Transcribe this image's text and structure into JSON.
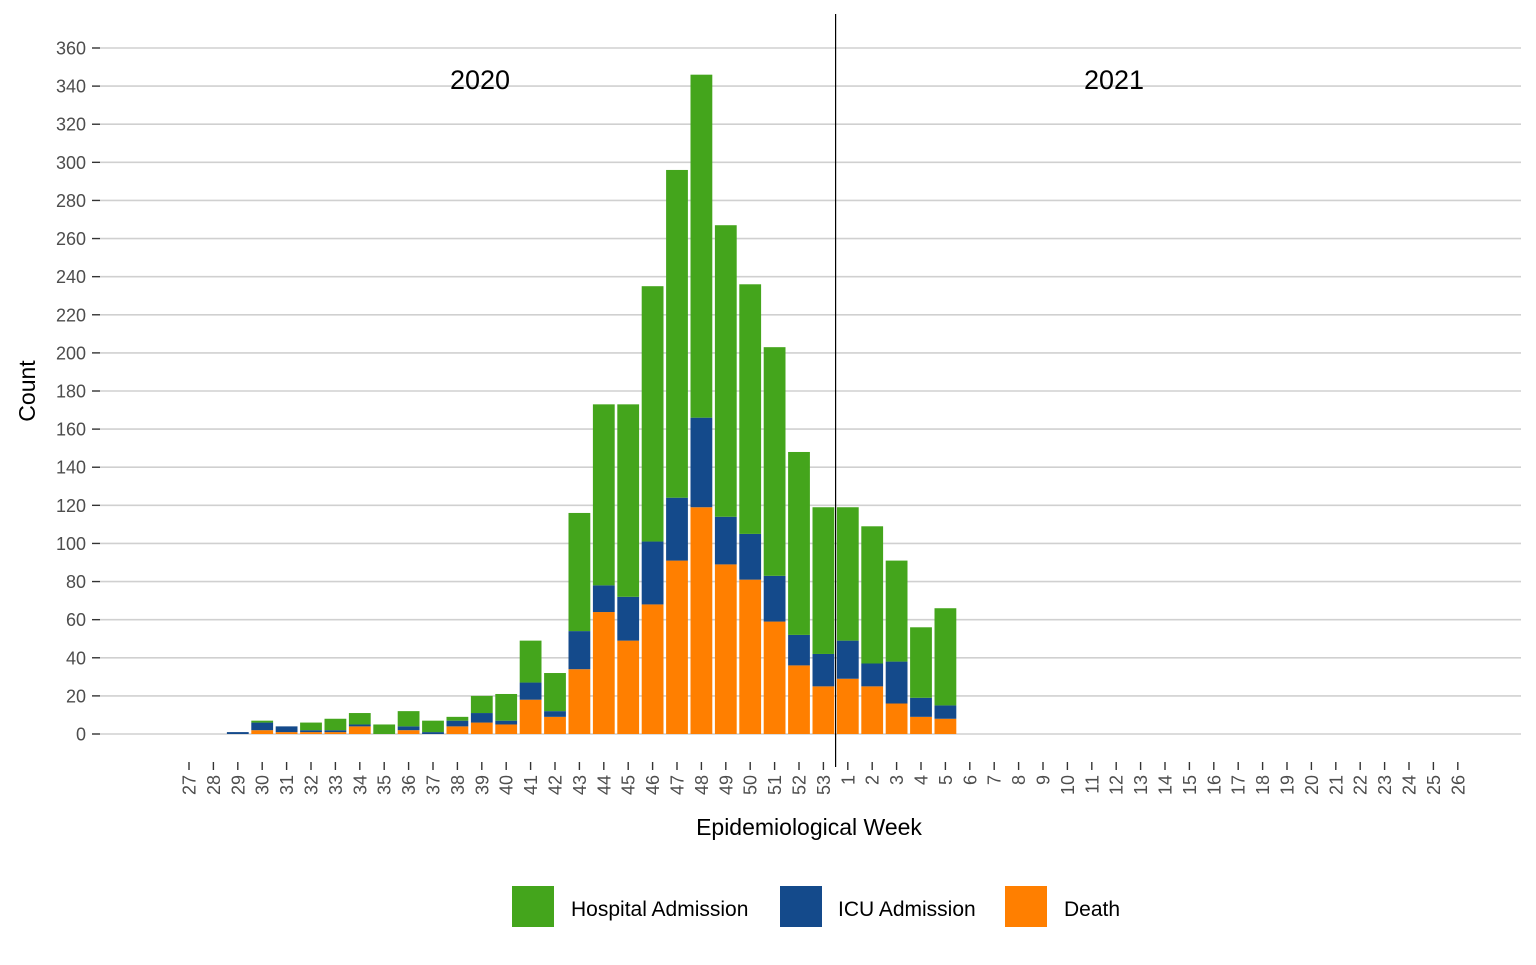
{
  "chart_data": {
    "type": "bar",
    "stacked": true,
    "xlabel": "Epidemiological Week",
    "ylabel": "Count",
    "ylim": [
      0,
      360
    ],
    "yticks": [
      0,
      20,
      40,
      60,
      80,
      100,
      120,
      140,
      160,
      180,
      200,
      220,
      240,
      260,
      280,
      300,
      320,
      340,
      360
    ],
    "grid": "horizontal major gridlines",
    "legend_position": "bottom",
    "year_labels": [
      "2020",
      "2021"
    ],
    "year_divider_after": "53",
    "categories": [
      "27",
      "28",
      "29",
      "30",
      "31",
      "32",
      "33",
      "34",
      "35",
      "36",
      "37",
      "38",
      "39",
      "40",
      "41",
      "42",
      "43",
      "44",
      "45",
      "46",
      "47",
      "48",
      "49",
      "50",
      "51",
      "52",
      "53",
      "1",
      "2",
      "3",
      "4",
      "5",
      "6",
      "7",
      "8",
      "9",
      "10",
      "11",
      "12",
      "13",
      "14",
      "15",
      "16",
      "17",
      "18",
      "19",
      "20",
      "21",
      "22",
      "23",
      "24",
      "25",
      "26"
    ],
    "series": [
      {
        "name": "Death",
        "color": "#ff7f00",
        "values": [
          0,
          0,
          0,
          2,
          1,
          1,
          1,
          4,
          0,
          2,
          0,
          4,
          6,
          5,
          18,
          9,
          34,
          64,
          49,
          68,
          91,
          119,
          89,
          81,
          59,
          36,
          25,
          29,
          25,
          16,
          9,
          8,
          0,
          0,
          0,
          0,
          0,
          0,
          0,
          0,
          0,
          0,
          0,
          0,
          0,
          0,
          0,
          0,
          0,
          0,
          0,
          0,
          0
        ]
      },
      {
        "name": "ICU Admission",
        "color": "#144a8b",
        "values": [
          0,
          0,
          1,
          4,
          3,
          1,
          1,
          1,
          0,
          2,
          1,
          3,
          5,
          2,
          9,
          3,
          20,
          14,
          23,
          33,
          33,
          47,
          25,
          24,
          24,
          16,
          17,
          20,
          12,
          22,
          10,
          7,
          0,
          0,
          0,
          0,
          0,
          0,
          0,
          0,
          0,
          0,
          0,
          0,
          0,
          0,
          0,
          0,
          0,
          0,
          0,
          0,
          0
        ]
      },
      {
        "name": "Hospital Admission",
        "color": "#44a51c",
        "values": [
          0,
          0,
          0,
          1,
          0,
          4,
          6,
          6,
          5,
          8,
          6,
          2,
          9,
          14,
          22,
          20,
          62,
          95,
          101,
          134,
          172,
          180,
          153,
          131,
          120,
          96,
          77,
          70,
          72,
          53,
          37,
          51,
          0,
          0,
          0,
          0,
          0,
          0,
          0,
          0,
          0,
          0,
          0,
          0,
          0,
          0,
          0,
          0,
          0,
          0,
          0,
          0,
          0
        ]
      }
    ],
    "legend": [
      "Hospital Admission",
      "ICU Admission",
      "Death"
    ]
  }
}
